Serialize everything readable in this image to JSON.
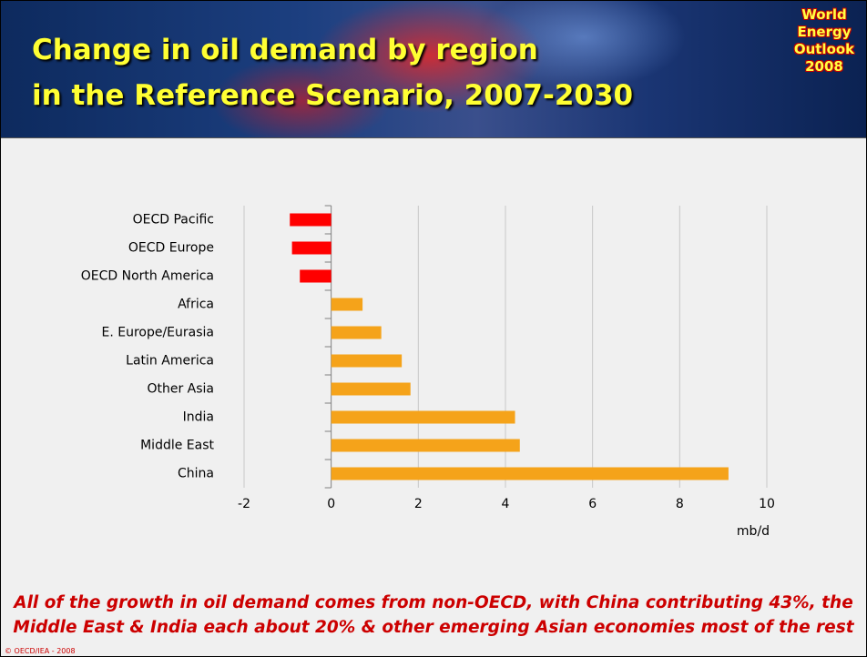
{
  "header": {
    "title_lines": [
      "Change in oil demand by region",
      "in the Reference Scenario, 2007-2030"
    ],
    "logo_lines": [
      "World",
      "Energy",
      "Outlook",
      "2008"
    ]
  },
  "chart_data": {
    "type": "bar",
    "orientation": "horizontal",
    "categories": [
      "OECD Pacific",
      "OECD Europe",
      "OECD North America",
      "Africa",
      "E. Europe/Eurasia",
      "Latin America",
      "Other Asia",
      "India",
      "Middle East",
      "China"
    ],
    "values": [
      -0.95,
      -0.9,
      -0.72,
      0.72,
      1.15,
      1.62,
      1.82,
      4.22,
      4.33,
      9.12
    ],
    "colors": [
      "#ff0000",
      "#ff0000",
      "#ff0000",
      "#f5a31a",
      "#f5a31a",
      "#f5a31a",
      "#f5a31a",
      "#f5a31a",
      "#f5a31a",
      "#f5a31a"
    ],
    "xlim": [
      -2,
      10
    ],
    "xticks": [
      -2,
      0,
      2,
      4,
      6,
      8,
      10
    ],
    "x_label": "mb/d",
    "grid": true
  },
  "caption_lines": [
    "All of the growth in oil demand comes from non-OECD, with China contributing 43%, the",
    "Middle East & India each about 20% & other emerging Asian economies most of the rest"
  ],
  "copyright": "© OECD/IEA - 2008"
}
